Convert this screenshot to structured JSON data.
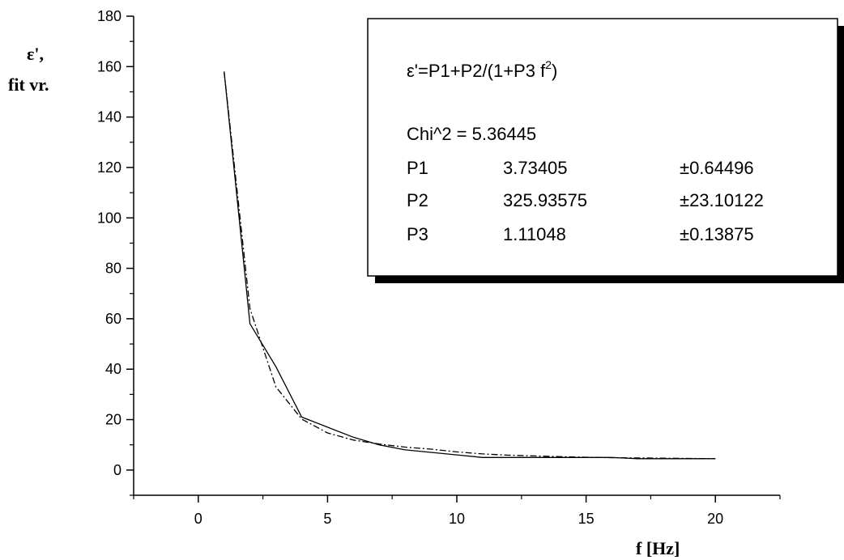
{
  "chart_data": {
    "type": "line",
    "xlabel": "f [Hz]",
    "ylabel_line1": "ε',",
    "ylabel_line2": "fit vr.",
    "xlim": [
      -2.5,
      22.5
    ],
    "ylim": [
      -10,
      180
    ],
    "x_ticks": [
      0,
      5,
      10,
      15,
      20
    ],
    "y_ticks": [
      0,
      20,
      40,
      60,
      80,
      100,
      120,
      140,
      160,
      180
    ],
    "grid": false,
    "series": [
      {
        "style": "solid",
        "x": [
          1,
          2,
          3,
          4,
          5,
          6,
          7,
          8,
          9,
          10,
          11,
          12,
          13,
          14,
          15,
          16,
          17,
          18,
          19,
          20
        ],
        "y": [
          158,
          58,
          41,
          21,
          17,
          13,
          10,
          8,
          7,
          6,
          5,
          5,
          5,
          5,
          5,
          5,
          4.5,
          4.5,
          4.5,
          4.5
        ]
      },
      {
        "style": "dash-dot",
        "x": [
          1,
          2,
          3,
          4,
          5,
          6,
          7,
          8,
          9,
          10,
          11,
          12,
          13,
          14,
          15,
          16,
          17,
          18,
          19,
          20
        ],
        "y": [
          158,
          64,
          33,
          20.2,
          14.7,
          11.9,
          10.3,
          9.1,
          8.3,
          7.2,
          6.4,
          5.9,
          5.6,
          5.3,
          5.1,
          4.9,
          4.8,
          4.7,
          4.6,
          4.5
        ]
      }
    ],
    "fit_box": {
      "formula_prefix": "ε'=P1+P2/(1+P3 f",
      "formula_exp": "2",
      "formula_suffix": ")",
      "chi_line": "Chi^2 = 5.36445",
      "params": [
        {
          "name": "P1",
          "value": "3.73405",
          "error": "±0.64496"
        },
        {
          "name": "P2",
          "value": "325.93575",
          "error": "±23.10122"
        },
        {
          "name": "P3",
          "value": "1.11048",
          "error": "±0.13875"
        }
      ]
    }
  }
}
